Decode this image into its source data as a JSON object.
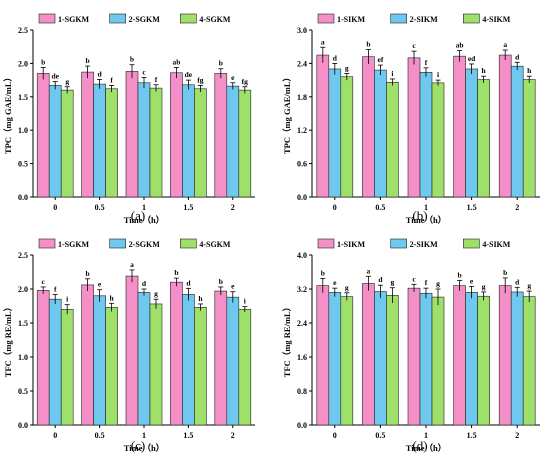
{
  "colors": {
    "series1": "#f48fc8",
    "series2": "#6fc8ee",
    "series3": "#9fe06a",
    "stroke": "#222222"
  },
  "chart_data": [
    {
      "type": "bar",
      "panel": "(a)",
      "xlabel": "Time（h）",
      "ylabel": "TPC（mg GAE/mL）",
      "ylim": [
        0,
        2.5
      ],
      "yticks": [
        "0.0",
        "0.5",
        "1.0",
        "1.5",
        "2.0",
        "2.5"
      ],
      "categories": [
        "0",
        "0.5",
        "1",
        "1.5",
        "2"
      ],
      "legend_position": "top",
      "series": [
        {
          "name": "1-SGKM",
          "values": [
            1.85,
            1.87,
            1.88,
            1.86,
            1.85
          ],
          "errors": [
            0.09,
            0.09,
            0.1,
            0.08,
            0.07
          ],
          "letters": [
            "b",
            "b",
            "b",
            "ab",
            "b"
          ]
        },
        {
          "name": "2-SGKM",
          "values": [
            1.67,
            1.69,
            1.71,
            1.68,
            1.66
          ],
          "errors": [
            0.06,
            0.07,
            0.08,
            0.07,
            0.05
          ],
          "letters": [
            "de",
            "d",
            "c",
            "de",
            "e"
          ]
        },
        {
          "name": "4-SGKM",
          "values": [
            1.6,
            1.62,
            1.63,
            1.62,
            1.6
          ],
          "errors": [
            0.05,
            0.05,
            0.05,
            0.05,
            0.05
          ],
          "letters": [
            "g",
            "f",
            "f",
            "fg",
            "fg"
          ]
        }
      ]
    },
    {
      "type": "bar",
      "panel": "(b)",
      "xlabel": "Time（h）",
      "ylabel": "TPC（mg GAE/mL）",
      "ylim": [
        0,
        3.0
      ],
      "yticks": [
        "0.0",
        "0.6",
        "1.2",
        "1.8",
        "2.4",
        "3.0"
      ],
      "categories": [
        "0",
        "0.5",
        "1",
        "1.5",
        "2"
      ],
      "legend_position": "top",
      "series": [
        {
          "name": "1-SIKM",
          "values": [
            2.55,
            2.52,
            2.5,
            2.53,
            2.55
          ],
          "errors": [
            0.14,
            0.13,
            0.12,
            0.1,
            0.09
          ],
          "letters": [
            "a",
            "b",
            "c",
            "ab",
            "a"
          ]
        },
        {
          "name": "2-SIKM",
          "values": [
            2.3,
            2.28,
            2.24,
            2.3,
            2.35
          ],
          "errors": [
            0.1,
            0.09,
            0.08,
            0.09,
            0.07
          ],
          "letters": [
            "d",
            "ef",
            "f",
            "ed",
            "d"
          ]
        },
        {
          "name": "4-SIKM",
          "values": [
            2.16,
            2.06,
            2.05,
            2.11,
            2.11
          ],
          "errors": [
            0.06,
            0.06,
            0.05,
            0.06,
            0.06
          ],
          "letters": [
            "g",
            "i",
            "i",
            "h",
            "h"
          ]
        }
      ]
    },
    {
      "type": "bar",
      "panel": "(c)",
      "xlabel": "Time（h）",
      "ylabel": "TFC（mg RE/mL）",
      "ylim": [
        0,
        2.5
      ],
      "yticks": [
        "0.0",
        "0.5",
        "1.0",
        "1.5",
        "2.0",
        "2.5"
      ],
      "categories": [
        "0",
        "0.5",
        "1",
        "1.5",
        "2"
      ],
      "legend_position": "top",
      "series": [
        {
          "name": "1-SGKM",
          "values": [
            1.98,
            2.06,
            2.19,
            2.1,
            1.97
          ],
          "errors": [
            0.05,
            0.09,
            0.09,
            0.06,
            0.06
          ],
          "letters": [
            "c",
            "b",
            "a",
            "b",
            "b"
          ]
        },
        {
          "name": "2-SGKM",
          "values": [
            1.85,
            1.9,
            1.95,
            1.92,
            1.88
          ],
          "errors": [
            0.07,
            0.09,
            0.05,
            0.09,
            0.08
          ],
          "letters": [
            "f",
            "e",
            "d",
            "d",
            "e"
          ]
        },
        {
          "name": "4-SGKM",
          "values": [
            1.7,
            1.73,
            1.78,
            1.73,
            1.7
          ],
          "errors": [
            0.07,
            0.06,
            0.07,
            0.05,
            0.04
          ],
          "letters": [
            "i",
            "h",
            "g",
            "h",
            "i"
          ]
        }
      ]
    },
    {
      "type": "bar",
      "panel": "(d)",
      "xlabel": "Time（h）",
      "ylabel": "TFC（mg RE/mL）",
      "ylim": [
        0,
        4.0
      ],
      "yticks": [
        "0.0",
        "0.8",
        "1.6",
        "2.4",
        "3.2",
        "4.0"
      ],
      "categories": [
        "0",
        "0.5",
        "1",
        "1.5",
        "2"
      ],
      "legend_position": "top",
      "series": [
        {
          "name": "1-SIKM",
          "values": [
            3.28,
            3.33,
            3.22,
            3.28,
            3.28
          ],
          "errors": [
            0.17,
            0.17,
            0.09,
            0.12,
            0.18
          ],
          "letters": [
            "b",
            "a",
            "c",
            "b",
            "b"
          ]
        },
        {
          "name": "2-SIKM",
          "values": [
            3.12,
            3.14,
            3.1,
            3.12,
            3.13
          ],
          "errors": [
            0.1,
            0.15,
            0.12,
            0.14,
            0.11
          ],
          "letters": [
            "e",
            "d",
            "f",
            "e",
            "d"
          ]
        },
        {
          "name": "4-SIKM",
          "values": [
            3.02,
            3.05,
            3.01,
            3.03,
            3.02
          ],
          "errors": [
            0.09,
            0.18,
            0.19,
            0.1,
            0.13
          ],
          "letters": [
            "g",
            "g",
            "g",
            "g",
            "g"
          ]
        }
      ]
    }
  ]
}
